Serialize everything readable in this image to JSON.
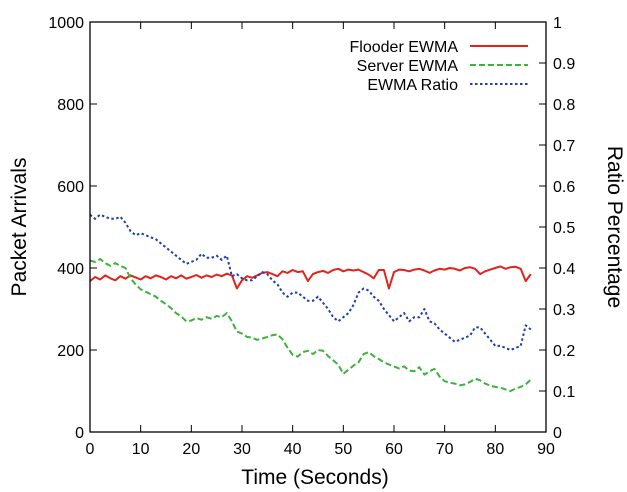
{
  "chart_data": {
    "type": "line",
    "xlabel": "Time (Seconds)",
    "ylabel": "Packet Arrivals",
    "y2label": "Ratio Percentage",
    "xlim": [
      0,
      90
    ],
    "ylim": [
      0,
      1000
    ],
    "y2lim": [
      0,
      1
    ],
    "xticks": [
      "0",
      "10",
      "20",
      "30",
      "40",
      "50",
      "60",
      "70",
      "80",
      "90"
    ],
    "yticks": [
      "0",
      "200",
      "400",
      "600",
      "800",
      "1000"
    ],
    "y2ticks": [
      "0",
      "0.1",
      "0.2",
      "0.3",
      "0.4",
      "0.5",
      "0.6",
      "0.7",
      "0.8",
      "0.9",
      "1"
    ],
    "grid": false,
    "legend_position": "top-right",
    "series": [
      {
        "name": "Flooder EWMA",
        "axis": "left",
        "color": "#e2231a",
        "style": "solid",
        "x": [
          0,
          1,
          2,
          3,
          4,
          5,
          6,
          7,
          8,
          9,
          10,
          11,
          12,
          13,
          14,
          15,
          16,
          17,
          18,
          19,
          20,
          21,
          22,
          23,
          24,
          25,
          26,
          27,
          28,
          29,
          30,
          31,
          32,
          33,
          34,
          35,
          36,
          37,
          38,
          39,
          40,
          41,
          42,
          43,
          44,
          45,
          46,
          47,
          48,
          49,
          50,
          51,
          52,
          53,
          54,
          55,
          56,
          57,
          58,
          59,
          60,
          61,
          62,
          63,
          64,
          65,
          66,
          67,
          68,
          69,
          70,
          71,
          72,
          73,
          74,
          75,
          76,
          77,
          78,
          79,
          80,
          81,
          82,
          83,
          84,
          85,
          86,
          87
        ],
        "values": [
          368,
          378,
          372,
          382,
          375,
          370,
          380,
          374,
          382,
          377,
          372,
          380,
          375,
          382,
          378,
          372,
          380,
          375,
          382,
          374,
          378,
          383,
          376,
          382,
          378,
          384,
          380,
          386,
          382,
          350,
          370,
          380,
          376,
          382,
          388,
          390,
          385,
          380,
          392,
          388,
          395,
          390,
          392,
          368,
          385,
          390,
          393,
          388,
          395,
          398,
          392,
          396,
          394,
          396,
          390,
          384,
          375,
          395,
          395,
          350,
          390,
          396,
          395,
          392,
          396,
          398,
          394,
          388,
          394,
          398,
          396,
          400,
          398,
          394,
          400,
          402,
          398,
          385,
          392,
          396,
          400,
          404,
          398,
          402,
          403,
          398,
          368,
          385
        ]
      },
      {
        "name": "Server EWMA",
        "axis": "left",
        "color": "#3cb33c",
        "style": "dashed",
        "x": [
          0,
          1,
          2,
          3,
          4,
          5,
          6,
          7,
          8,
          9,
          10,
          11,
          12,
          13,
          14,
          15,
          16,
          17,
          18,
          19,
          20,
          21,
          22,
          23,
          24,
          25,
          26,
          27,
          28,
          29,
          30,
          31,
          32,
          33,
          34,
          35,
          36,
          37,
          38,
          39,
          40,
          41,
          42,
          43,
          44,
          45,
          46,
          47,
          48,
          49,
          50,
          51,
          52,
          53,
          54,
          55,
          56,
          57,
          58,
          59,
          60,
          61,
          62,
          63,
          64,
          65,
          66,
          67,
          68,
          69,
          70,
          71,
          72,
          73,
          74,
          75,
          76,
          77,
          78,
          79,
          80,
          81,
          82,
          83,
          84,
          85,
          86,
          87
        ],
        "values": [
          418,
          415,
          422,
          412,
          405,
          412,
          405,
          400,
          375,
          360,
          348,
          342,
          336,
          330,
          320,
          312,
          302,
          290,
          282,
          270,
          272,
          278,
          274,
          280,
          276,
          283,
          280,
          290,
          270,
          245,
          240,
          232,
          230,
          225,
          228,
          232,
          236,
          238,
          226,
          205,
          188,
          184,
          195,
          198,
          190,
          200,
          198,
          185,
          175,
          164,
          142,
          152,
          162,
          170,
          190,
          195,
          185,
          178,
          170,
          165,
          160,
          155,
          160,
          150,
          148,
          158,
          140,
          148,
          154,
          135,
          124,
          120,
          118,
          114,
          116,
          122,
          130,
          126,
          118,
          113,
          110,
          108,
          104,
          100,
          106,
          110,
          116,
          128
        ]
      },
      {
        "name": "EWMA Ratio",
        "axis": "right",
        "color": "#1c3faa",
        "style": "dotted",
        "x": [
          0,
          1,
          2,
          3,
          4,
          5,
          6,
          7,
          8,
          9,
          10,
          11,
          12,
          13,
          14,
          15,
          16,
          17,
          18,
          19,
          20,
          21,
          22,
          23,
          24,
          25,
          26,
          27,
          28,
          29,
          30,
          31,
          32,
          33,
          34,
          35,
          36,
          37,
          38,
          39,
          40,
          41,
          42,
          43,
          44,
          45,
          46,
          47,
          48,
          49,
          50,
          51,
          52,
          53,
          54,
          55,
          56,
          57,
          58,
          59,
          60,
          61,
          62,
          63,
          64,
          65,
          66,
          67,
          68,
          69,
          70,
          71,
          72,
          73,
          74,
          75,
          76,
          77,
          78,
          79,
          80,
          81,
          82,
          83,
          84,
          85,
          86,
          87
        ],
        "values": [
          0.53,
          0.52,
          0.53,
          0.525,
          0.52,
          0.52,
          0.525,
          0.51,
          0.49,
          0.48,
          0.485,
          0.48,
          0.475,
          0.47,
          0.46,
          0.45,
          0.44,
          0.43,
          0.42,
          0.41,
          0.415,
          0.42,
          0.435,
          0.425,
          0.425,
          0.43,
          0.42,
          0.43,
          0.38,
          0.385,
          0.375,
          0.37,
          0.37,
          0.38,
          0.39,
          0.385,
          0.37,
          0.36,
          0.34,
          0.33,
          0.34,
          0.34,
          0.33,
          0.32,
          0.32,
          0.33,
          0.315,
          0.3,
          0.28,
          0.27,
          0.28,
          0.29,
          0.31,
          0.34,
          0.35,
          0.345,
          0.33,
          0.32,
          0.3,
          0.285,
          0.27,
          0.28,
          0.29,
          0.27,
          0.28,
          0.28,
          0.3,
          0.27,
          0.265,
          0.25,
          0.24,
          0.23,
          0.22,
          0.225,
          0.23,
          0.235,
          0.255,
          0.255,
          0.24,
          0.225,
          0.21,
          0.21,
          0.205,
          0.2,
          0.205,
          0.21,
          0.26,
          0.25
        ]
      }
    ]
  }
}
